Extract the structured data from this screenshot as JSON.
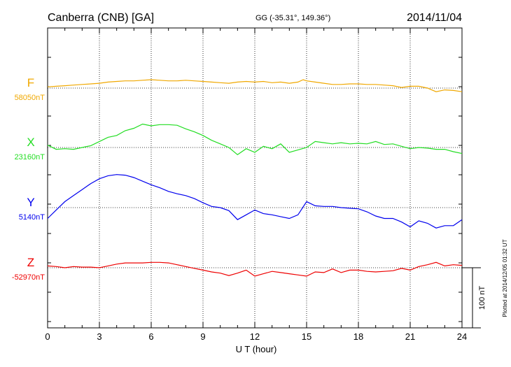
{
  "header": {
    "station": "Canberra (CNB)  [GA]",
    "coords": "GG (-35.31°, 149.36°)",
    "date": "2014/11/04"
  },
  "footer": {
    "plotted": "Plotted at 2014/12/05 01:32 UT",
    "scale_label": "100 nT"
  },
  "chart_data": {
    "type": "line",
    "xlabel": "U T (hour)",
    "xlim": [
      0,
      24
    ],
    "xticks": [
      0,
      3,
      6,
      9,
      12,
      15,
      18,
      21,
      24
    ],
    "scale_bar_nT": 100,
    "series": [
      {
        "name": "F",
        "baseline_label": "58050nT",
        "color": "#f0a800",
        "points": [
          [
            0,
            58052
          ],
          [
            0.5,
            58053
          ],
          [
            1,
            58054
          ],
          [
            1.5,
            58055
          ],
          [
            2,
            58056
          ],
          [
            2.5,
            58057
          ],
          [
            3,
            58058
          ],
          [
            3.5,
            58060
          ],
          [
            4,
            58061
          ],
          [
            4.5,
            58062
          ],
          [
            5,
            58062
          ],
          [
            5.5,
            58063
          ],
          [
            6,
            58064
          ],
          [
            6.5,
            58063
          ],
          [
            7,
            58062
          ],
          [
            7.5,
            58062
          ],
          [
            8,
            58063
          ],
          [
            8.5,
            58062
          ],
          [
            9,
            58061
          ],
          [
            9.5,
            58060
          ],
          [
            10,
            58059
          ],
          [
            10.5,
            58058
          ],
          [
            11,
            58060
          ],
          [
            11.5,
            58061
          ],
          [
            12,
            58060
          ],
          [
            12.5,
            58061
          ],
          [
            13,
            58059
          ],
          [
            13.5,
            58060
          ],
          [
            14,
            58058
          ],
          [
            14.5,
            58060
          ],
          [
            14.8,
            58064
          ],
          [
            15,
            58062
          ],
          [
            15.5,
            58060
          ],
          [
            16,
            58058
          ],
          [
            16.5,
            58056
          ],
          [
            17,
            58056
          ],
          [
            17.5,
            58057
          ],
          [
            18,
            58057
          ],
          [
            18.5,
            58056
          ],
          [
            19,
            58056
          ],
          [
            19.5,
            58055
          ],
          [
            20,
            58054
          ],
          [
            20.5,
            58051
          ],
          [
            21,
            58053
          ],
          [
            21.5,
            58053
          ],
          [
            22,
            58050
          ],
          [
            22.5,
            58044
          ],
          [
            23,
            58047
          ],
          [
            23.5,
            58046
          ],
          [
            24,
            58044
          ]
        ]
      },
      {
        "name": "X",
        "baseline_label": "23160nT",
        "color": "#22dd22",
        "points": [
          [
            0,
            23164
          ],
          [
            0.5,
            23157
          ],
          [
            1,
            23158
          ],
          [
            1.5,
            23157
          ],
          [
            2,
            23160
          ],
          [
            2.5,
            23163
          ],
          [
            3,
            23170
          ],
          [
            3.5,
            23177
          ],
          [
            4,
            23180
          ],
          [
            4.5,
            23188
          ],
          [
            5,
            23192
          ],
          [
            5.5,
            23199
          ],
          [
            6,
            23196
          ],
          [
            6.5,
            23198
          ],
          [
            7,
            23198
          ],
          [
            7.5,
            23197
          ],
          [
            8,
            23191
          ],
          [
            8.5,
            23186
          ],
          [
            9,
            23180
          ],
          [
            9.5,
            23172
          ],
          [
            10,
            23166
          ],
          [
            10.5,
            23160
          ],
          [
            11,
            23148
          ],
          [
            11.5,
            23158
          ],
          [
            12,
            23152
          ],
          [
            12.5,
            23162
          ],
          [
            13,
            23158
          ],
          [
            13.5,
            23166
          ],
          [
            14,
            23152
          ],
          [
            14.5,
            23156
          ],
          [
            15,
            23160
          ],
          [
            15.5,
            23170
          ],
          [
            16,
            23168
          ],
          [
            16.5,
            23166
          ],
          [
            17,
            23168
          ],
          [
            17.5,
            23166
          ],
          [
            18,
            23167
          ],
          [
            18.5,
            23166
          ],
          [
            19,
            23170
          ],
          [
            19.5,
            23165
          ],
          [
            20,
            23166
          ],
          [
            20.5,
            23162
          ],
          [
            21,
            23158
          ],
          [
            21.5,
            23160
          ],
          [
            22,
            23159
          ],
          [
            22.5,
            23157
          ],
          [
            23,
            23157
          ],
          [
            23.5,
            23153
          ],
          [
            24,
            23150
          ]
        ]
      },
      {
        "name": "Y",
        "baseline_label": "5140nT",
        "color": "#0000ee",
        "points": [
          [
            0,
            5122
          ],
          [
            0.5,
            5136
          ],
          [
            1,
            5150
          ],
          [
            1.5,
            5160
          ],
          [
            2,
            5170
          ],
          [
            2.5,
            5180
          ],
          [
            3,
            5188
          ],
          [
            3.5,
            5193
          ],
          [
            4,
            5195
          ],
          [
            4.5,
            5194
          ],
          [
            5,
            5190
          ],
          [
            5.5,
            5184
          ],
          [
            6,
            5178
          ],
          [
            6.5,
            5173
          ],
          [
            7,
            5167
          ],
          [
            7.5,
            5163
          ],
          [
            8,
            5160
          ],
          [
            8.5,
            5155
          ],
          [
            9,
            5148
          ],
          [
            9.5,
            5142
          ],
          [
            10,
            5140
          ],
          [
            10.5,
            5135
          ],
          [
            11,
            5120
          ],
          [
            11.5,
            5128
          ],
          [
            12,
            5136
          ],
          [
            12.5,
            5130
          ],
          [
            13,
            5128
          ],
          [
            13.5,
            5125
          ],
          [
            14,
            5122
          ],
          [
            14.5,
            5128
          ],
          [
            15,
            5150
          ],
          [
            15.5,
            5143
          ],
          [
            16,
            5142
          ],
          [
            16.5,
            5142
          ],
          [
            17,
            5140
          ],
          [
            17.5,
            5139
          ],
          [
            18,
            5138
          ],
          [
            18.5,
            5133
          ],
          [
            19,
            5126
          ],
          [
            19.5,
            5122
          ],
          [
            20,
            5122
          ],
          [
            20.5,
            5116
          ],
          [
            21,
            5108
          ],
          [
            21.5,
            5118
          ],
          [
            22,
            5114
          ],
          [
            22.5,
            5106
          ],
          [
            23,
            5110
          ],
          [
            23.5,
            5110
          ],
          [
            24,
            5120
          ]
        ]
      },
      {
        "name": "Z",
        "baseline_label": "-52970nT",
        "color": "#ee0000",
        "points": [
          [
            0,
            -52967
          ],
          [
            0.5,
            -52968
          ],
          [
            1,
            -52970
          ],
          [
            1.5,
            -52968
          ],
          [
            2,
            -52969
          ],
          [
            2.5,
            -52969
          ],
          [
            3,
            -52970
          ],
          [
            3.5,
            -52967
          ],
          [
            4,
            -52964
          ],
          [
            4.5,
            -52962
          ],
          [
            5,
            -52962
          ],
          [
            5.5,
            -52962
          ],
          [
            6,
            -52961
          ],
          [
            6.5,
            -52961
          ],
          [
            7,
            -52962
          ],
          [
            7.5,
            -52965
          ],
          [
            8,
            -52968
          ],
          [
            8.5,
            -52971
          ],
          [
            9,
            -52974
          ],
          [
            9.5,
            -52977
          ],
          [
            10,
            -52979
          ],
          [
            10.5,
            -52983
          ],
          [
            11,
            -52979
          ],
          [
            11.5,
            -52974
          ],
          [
            12,
            -52984
          ],
          [
            12.5,
            -52980
          ],
          [
            13,
            -52976
          ],
          [
            13.5,
            -52978
          ],
          [
            14,
            -52980
          ],
          [
            14.5,
            -52982
          ],
          [
            15,
            -52984
          ],
          [
            15.5,
            -52977
          ],
          [
            16,
            -52978
          ],
          [
            16.5,
            -52972
          ],
          [
            17,
            -52978
          ],
          [
            17.5,
            -52974
          ],
          [
            18,
            -52974
          ],
          [
            18.5,
            -52976
          ],
          [
            19,
            -52977
          ],
          [
            19.5,
            -52976
          ],
          [
            20,
            -52975
          ],
          [
            20.5,
            -52971
          ],
          [
            21,
            -52974
          ],
          [
            21.5,
            -52968
          ],
          [
            22,
            -52965
          ],
          [
            22.5,
            -52961
          ],
          [
            23,
            -52967
          ],
          [
            23.5,
            -52965
          ],
          [
            24,
            -52966
          ]
        ]
      }
    ]
  }
}
